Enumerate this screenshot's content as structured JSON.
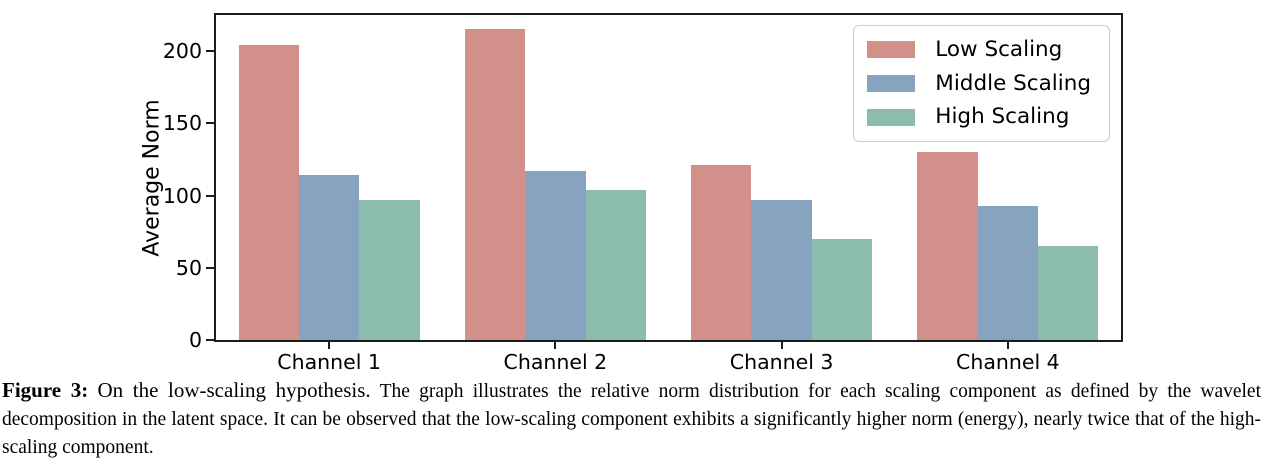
{
  "chart_data": {
    "type": "bar",
    "categories": [
      "Channel 1",
      "Channel 2",
      "Channel 3",
      "Channel 4"
    ],
    "series": [
      {
        "name": "Low Scaling",
        "color": "#d3908a",
        "values": [
          204,
          215,
          121,
          130
        ]
      },
      {
        "name": "Middle Scaling",
        "color": "#86a4bf",
        "values": [
          114,
          117,
          97,
          93
        ]
      },
      {
        "name": "High Scaling",
        "color": "#8cbcad",
        "values": [
          97,
          104,
          70,
          65
        ]
      }
    ],
    "xlabel": "",
    "ylabel": "Average Norm",
    "yticks": [
      0,
      50,
      100,
      150,
      200
    ],
    "ylim": [
      0,
      225
    ],
    "grid": false,
    "legend_position": "upper right",
    "bar_group_width": 0.8
  },
  "caption": {
    "label": "Figure 3:",
    "title": "On the low-scaling hypothesis.",
    "body": "The graph illustrates the relative norm distribution for each scaling component as defined by the wavelet decomposition in the latent space. It can be observed that the low-scaling component exhibits a significantly higher norm (energy), nearly twice that of the high-scaling component."
  },
  "colors": {
    "spine": "#1c1c1c",
    "legend_border": "#cccccc",
    "text": "#000000",
    "background": "#ffffff"
  }
}
